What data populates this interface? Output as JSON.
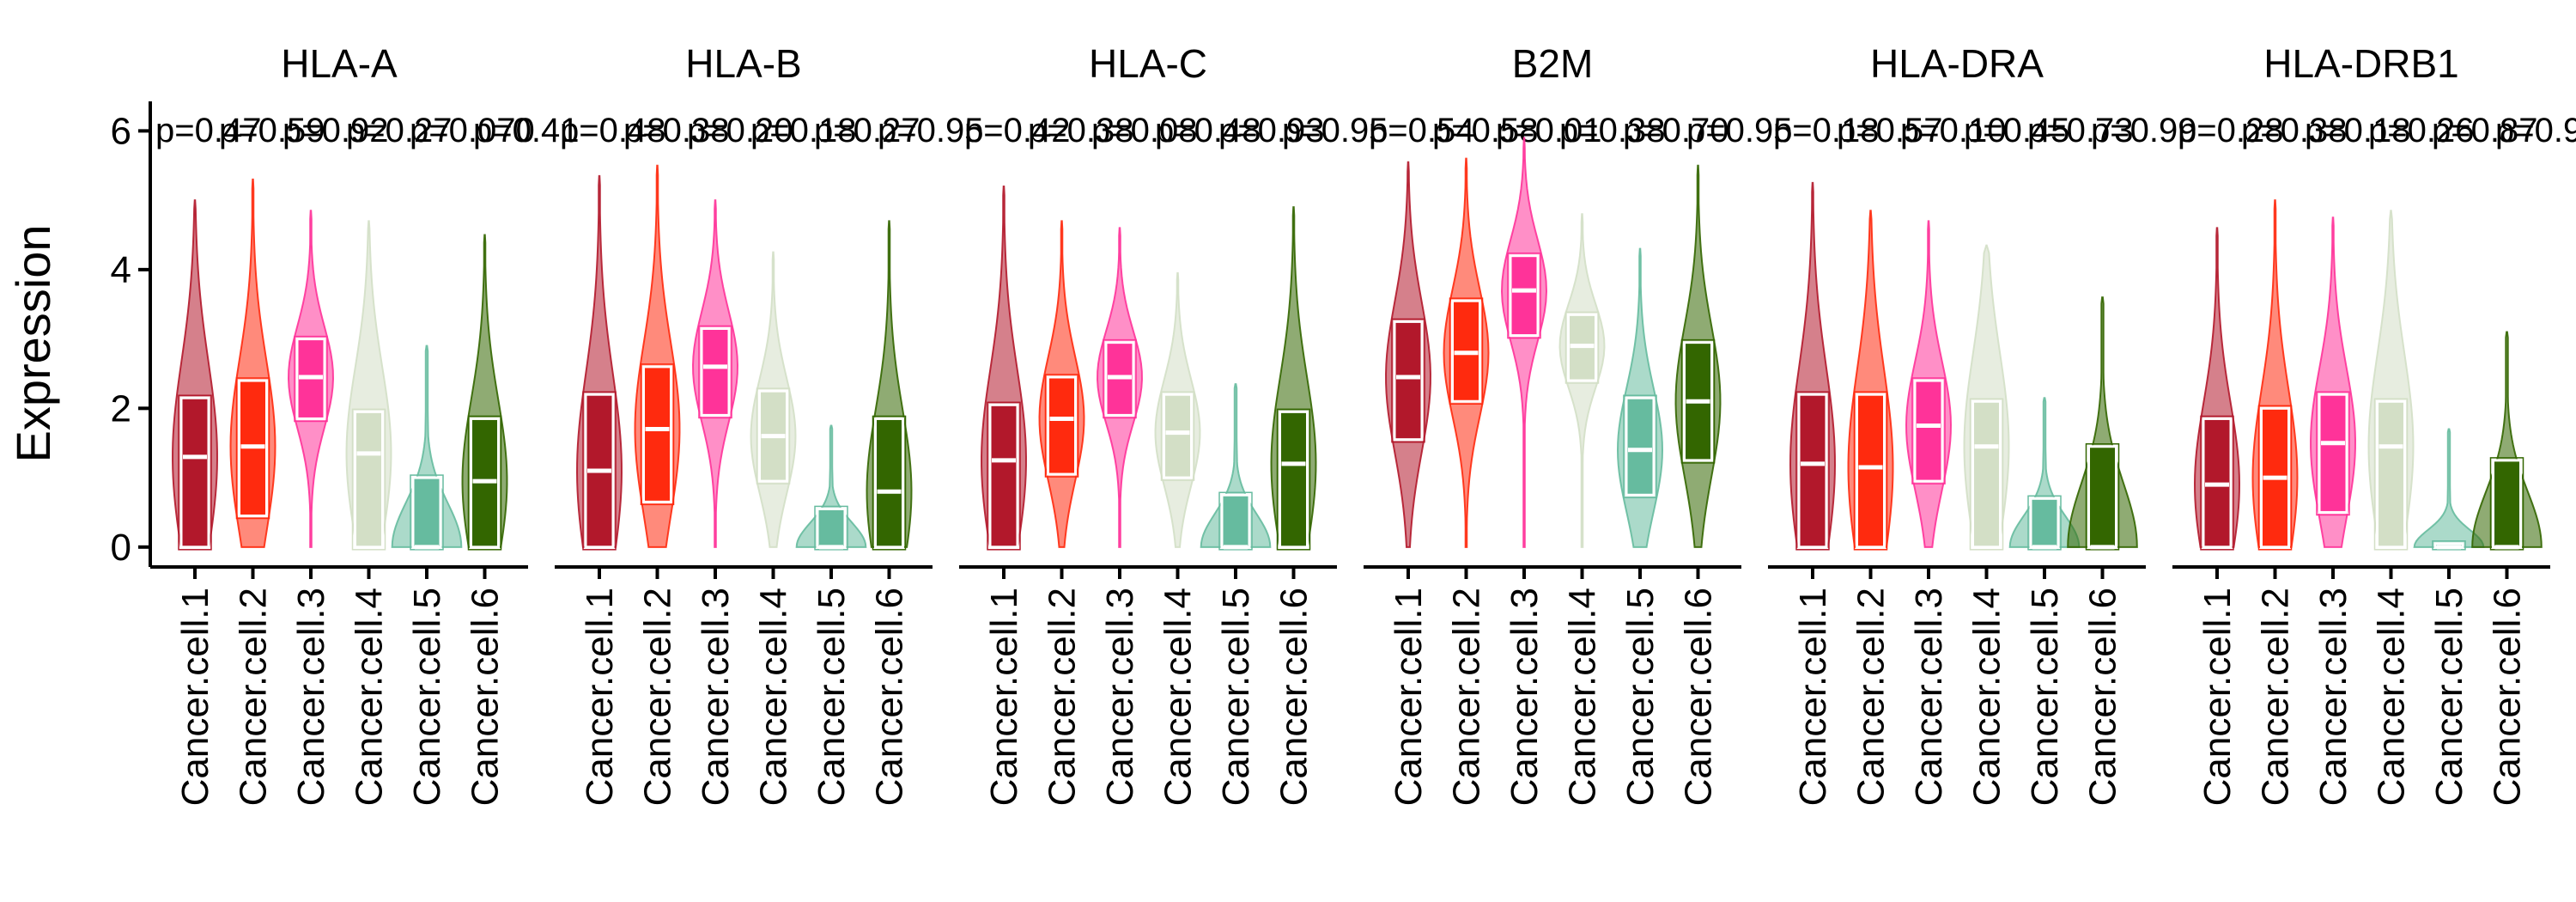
{
  "chart_data": {
    "type": "violin",
    "ylabel": "Expression",
    "ylim": [
      -0.25,
      6.5
    ],
    "yticks": [
      0,
      2,
      4,
      6
    ],
    "categories": [
      "Cancer.cell.1",
      "Cancer.cell.2",
      "Cancer.cell.3",
      "Cancer.cell.4",
      "Cancer.cell.5",
      "Cancer.cell.6"
    ],
    "colors": [
      "#b2182b",
      "#ff2a0e",
      "#ff3399",
      "#d3dfc6",
      "#66bb9f",
      "#336600"
    ],
    "panels": [
      {
        "gene": "HLA-A",
        "pvalues": [
          "p=0.47",
          "p=0.59",
          "p=0.92",
          "p=0.27",
          "p=0.070",
          "p=0.41"
        ],
        "groups": [
          {
            "max": 5.0,
            "q1": 0.0,
            "median": 1.3,
            "q3": 2.15
          },
          {
            "max": 5.3,
            "q1": 0.45,
            "median": 1.45,
            "q3": 2.4
          },
          {
            "max": 4.85,
            "q1": 1.85,
            "median": 2.45,
            "q3": 3.0
          },
          {
            "max": 4.7,
            "q1": 0.0,
            "median": 1.35,
            "q3": 1.95
          },
          {
            "max": 2.9,
            "q1": 0.0,
            "median": 0.0,
            "q3": 1.0
          },
          {
            "max": 4.5,
            "q1": 0.0,
            "median": 0.95,
            "q3": 1.85
          }
        ]
      },
      {
        "gene": "HLA-B",
        "pvalues": [
          "p=0.48",
          "p=0.38",
          "p=0.20",
          "p=0.18",
          "p=0.27",
          "p=0.95"
        ],
        "groups": [
          {
            "max": 5.35,
            "q1": 0.0,
            "median": 1.1,
            "q3": 2.2
          },
          {
            "max": 5.5,
            "q1": 0.65,
            "median": 1.7,
            "q3": 2.6
          },
          {
            "max": 5.0,
            "q1": 1.9,
            "median": 2.6,
            "q3": 3.15
          },
          {
            "max": 4.25,
            "q1": 0.95,
            "median": 1.6,
            "q3": 2.25
          },
          {
            "max": 1.75,
            "q1": 0.0,
            "median": 0.0,
            "q3": 0.55
          },
          {
            "max": 4.7,
            "q1": 0.0,
            "median": 0.8,
            "q3": 1.85
          }
        ]
      },
      {
        "gene": "HLA-C",
        "pvalues": [
          "p=0.42",
          "p=0.38",
          "p=0.08",
          "p=0.48",
          "p=0.93",
          "p=0.95"
        ],
        "groups": [
          {
            "max": 5.2,
            "q1": 0.0,
            "median": 1.25,
            "q3": 2.05
          },
          {
            "max": 4.7,
            "q1": 1.05,
            "median": 1.85,
            "q3": 2.45
          },
          {
            "max": 4.6,
            "q1": 1.9,
            "median": 2.45,
            "q3": 2.95
          },
          {
            "max": 3.95,
            "q1": 1.0,
            "median": 1.65,
            "q3": 2.2
          },
          {
            "max": 2.35,
            "q1": 0.0,
            "median": 0.0,
            "q3": 0.75
          },
          {
            "max": 4.9,
            "q1": 0.0,
            "median": 1.2,
            "q3": 1.95
          }
        ]
      },
      {
        "gene": "B2M",
        "pvalues": [
          "p=0.54",
          "p=0.58",
          "p=0.01",
          "p=0.38",
          "p=0.70",
          "p=0.95"
        ],
        "groups": [
          {
            "max": 5.55,
            "q1": 1.55,
            "median": 2.45,
            "q3": 3.25
          },
          {
            "max": 5.6,
            "q1": 2.1,
            "median": 2.8,
            "q3": 3.55
          },
          {
            "max": 5.9,
            "q1": 3.05,
            "median": 3.7,
            "q3": 4.2
          },
          {
            "max": 4.8,
            "q1": 2.4,
            "median": 2.9,
            "q3": 3.35
          },
          {
            "max": 4.3,
            "q1": 0.75,
            "median": 1.4,
            "q3": 2.15
          },
          {
            "max": 5.5,
            "q1": 1.25,
            "median": 2.1,
            "q3": 2.95
          }
        ]
      },
      {
        "gene": "HLA-DRA",
        "pvalues": [
          "p=0.18",
          "p=0.57",
          "p=0.10",
          "p=0.45",
          "p=0.73",
          "p=0.99"
        ],
        "groups": [
          {
            "max": 5.25,
            "q1": 0.0,
            "median": 1.2,
            "q3": 2.2
          },
          {
            "max": 4.85,
            "q1": 0.0,
            "median": 1.15,
            "q3": 2.2
          },
          {
            "max": 4.7,
            "q1": 0.95,
            "median": 1.75,
            "q3": 2.4
          },
          {
            "max": 4.35,
            "q1": 0.0,
            "median": 1.45,
            "q3": 2.1
          },
          {
            "max": 2.15,
            "q1": 0.0,
            "median": 0.0,
            "q3": 0.7
          },
          {
            "max": 3.6,
            "q1": 0.0,
            "median": 0.0,
            "q3": 1.45
          }
        ]
      },
      {
        "gene": "HLA-DRB1",
        "pvalues": [
          "p=0.28",
          "p=0.38",
          "p=0.18",
          "p=0.26",
          "p=0.87",
          "p=0.98"
        ],
        "groups": [
          {
            "max": 4.6,
            "q1": 0.0,
            "median": 0.9,
            "q3": 1.85
          },
          {
            "max": 5.0,
            "q1": 0.0,
            "median": 1.0,
            "q3": 2.0
          },
          {
            "max": 4.75,
            "q1": 0.5,
            "median": 1.5,
            "q3": 2.2
          },
          {
            "max": 4.85,
            "q1": 0.0,
            "median": 1.45,
            "q3": 2.1
          },
          {
            "max": 1.7,
            "q1": 0.0,
            "median": 0.0,
            "q3": 0.05
          },
          {
            "max": 3.1,
            "q1": 0.0,
            "median": 0.0,
            "q3": 1.25
          }
        ]
      }
    ]
  }
}
